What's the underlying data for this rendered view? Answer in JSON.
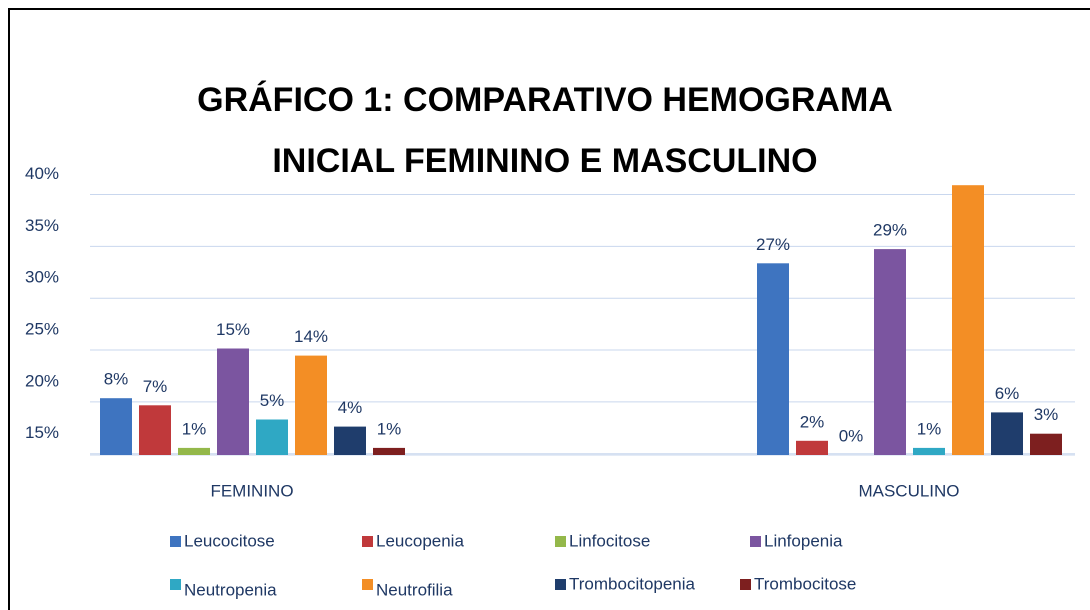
{
  "chart_data": {
    "type": "bar",
    "title": "GRÁFICO 1: COMPARATIVO HEMOGRAMA INICIAL FEMININO E MASCULINO",
    "categories": [
      "FEMININO",
      "MASCULINO"
    ],
    "series": [
      {
        "name": "Leucocitose",
        "color": "#3e74c0",
        "values": [
          8,
          27
        ],
        "value_labels": [
          "8%",
          "27%"
        ]
      },
      {
        "name": "Leucopenia",
        "color": "#c0393b",
        "values": [
          7,
          2
        ],
        "value_labels": [
          "7%",
          "2%"
        ]
      },
      {
        "name": "Linfocitose",
        "color": "#94b84a",
        "values": [
          1,
          0
        ],
        "value_labels": [
          "1%",
          "0%"
        ]
      },
      {
        "name": "Linfopenia",
        "color": "#7b55a0",
        "values": [
          15,
          29
        ],
        "value_labels": [
          "15%",
          "29%"
        ]
      },
      {
        "name": "Neutropenia",
        "color": "#2fa8c4",
        "values": [
          5,
          1
        ],
        "value_labels": [
          "5%",
          "1%"
        ]
      },
      {
        "name": "Neutrofilia",
        "color": "#f38e25",
        "values": [
          14,
          38
        ],
        "value_labels": [
          "14%",
          null
        ]
      },
      {
        "name": "Trombocitopenia",
        "color": "#1f3d6c",
        "values": [
          4,
          6
        ],
        "value_labels": [
          "4%",
          "6%"
        ]
      },
      {
        "name": "Trombocitose",
        "color": "#7d1f1f",
        "values": [
          1,
          3
        ],
        "value_labels": [
          "1%",
          "3%"
        ]
      }
    ],
    "ylim": [
      0,
      40
    ],
    "yticks": [
      {
        "value": 3,
        "label": "15%"
      },
      {
        "value": 10.3,
        "label": "20%"
      },
      {
        "value": 17.6,
        "label": "25%"
      },
      {
        "value": 24.9,
        "label": "30%"
      },
      {
        "value": 32.2,
        "label": "35%"
      },
      {
        "value": 39.5,
        "label": "40%"
      }
    ],
    "grid": true,
    "legend": "bottom"
  }
}
